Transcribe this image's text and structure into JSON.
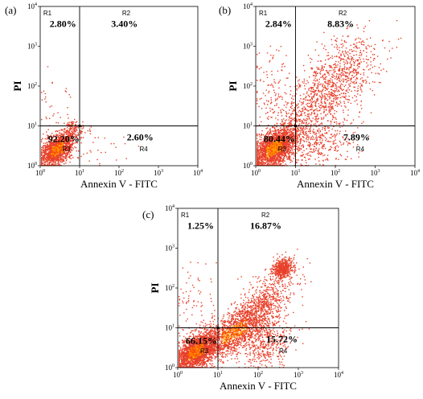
{
  "chart_data": [
    {
      "type": "scatter",
      "panel": "(a)",
      "xlabel": "Annexin V - FITC",
      "ylabel": "PI",
      "xscale": "log",
      "yscale": "log",
      "xlim": [
        1,
        10000
      ],
      "ylim": [
        1,
        10000
      ],
      "tick_bases": [
        "10",
        "10",
        "10",
        "10",
        "10"
      ],
      "tick_exps": [
        "0",
        "1",
        "2",
        "3",
        "4"
      ],
      "quadrant_gate": {
        "x": 10,
        "y": 10
      },
      "regions": [
        {
          "name": "R1",
          "percent": "2.80%"
        },
        {
          "name": "R2",
          "percent": "3.40%"
        },
        {
          "name": "R3",
          "percent": "92.20%"
        },
        {
          "name": "R4",
          "percent": "2.60%"
        }
      ]
    },
    {
      "type": "scatter",
      "panel": "(b)",
      "xlabel": "Annexin V - FITC",
      "ylabel": "PI",
      "xscale": "log",
      "yscale": "log",
      "xlim": [
        1,
        10000
      ],
      "ylim": [
        1,
        10000
      ],
      "tick_bases": [
        "10",
        "10",
        "10",
        "10",
        "10"
      ],
      "tick_exps": [
        "0",
        "1",
        "2",
        "3",
        "4"
      ],
      "quadrant_gate": {
        "x": 10,
        "y": 10
      },
      "regions": [
        {
          "name": "R1",
          "percent": "2.84%"
        },
        {
          "name": "R2",
          "percent": "8.83%"
        },
        {
          "name": "R3",
          "percent": "80.44%"
        },
        {
          "name": "R4",
          "percent": "7.89%"
        }
      ]
    },
    {
      "type": "scatter",
      "panel": "(c)",
      "xlabel": "Annexin V - FITC",
      "ylabel": "PI",
      "xscale": "log",
      "yscale": "log",
      "xlim": [
        1,
        10000
      ],
      "ylim": [
        1,
        10000
      ],
      "tick_bases": [
        "10",
        "10",
        "10",
        "10",
        "10"
      ],
      "tick_exps": [
        "0",
        "1",
        "2",
        "3",
        "4"
      ],
      "quadrant_gate": {
        "x": 10,
        "y": 10
      },
      "regions": [
        {
          "name": "R1",
          "percent": "1.25%"
        },
        {
          "name": "R2",
          "percent": "16.87%"
        },
        {
          "name": "R3",
          "percent": "66.15%"
        },
        {
          "name": "R4",
          "percent": "15.72%"
        }
      ]
    }
  ],
  "colors": {
    "dot_light": "#e8402a",
    "dot_dense": "#ff9a00",
    "dot_mid": "#ff4a00",
    "axis": "#000000"
  }
}
